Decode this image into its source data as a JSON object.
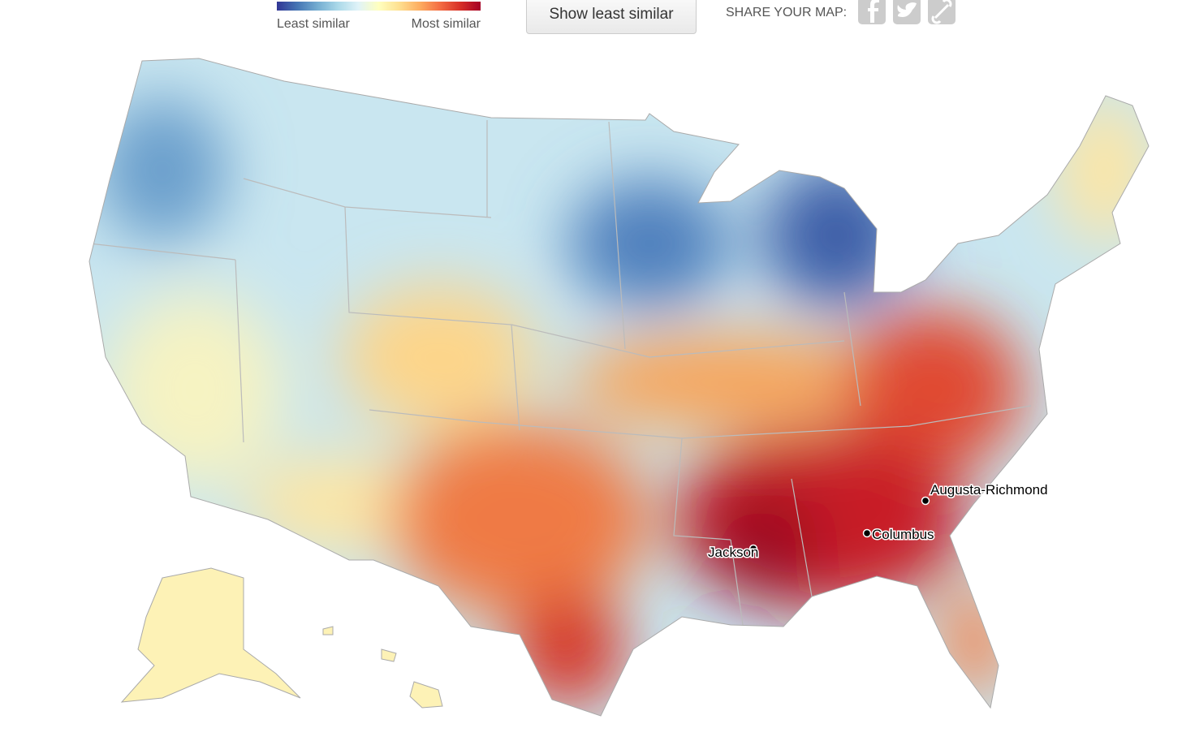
{
  "legend": {
    "low_label": "Least similar",
    "high_label": "Most similar",
    "colors": [
      "#313695",
      "#4575b4",
      "#74add1",
      "#abd9e9",
      "#e0f3f8",
      "#ffffbf",
      "#fee090",
      "#fdae61",
      "#f46d43",
      "#d73027",
      "#a50026"
    ]
  },
  "button": "Show least similar",
  "share": {
    "label": "SHARE YOUR MAP:"
  },
  "cities": [
    {
      "name": "Augusta-Richmond"
    },
    {
      "name": "Columbus"
    },
    {
      "name": "Jackson"
    }
  ]
}
